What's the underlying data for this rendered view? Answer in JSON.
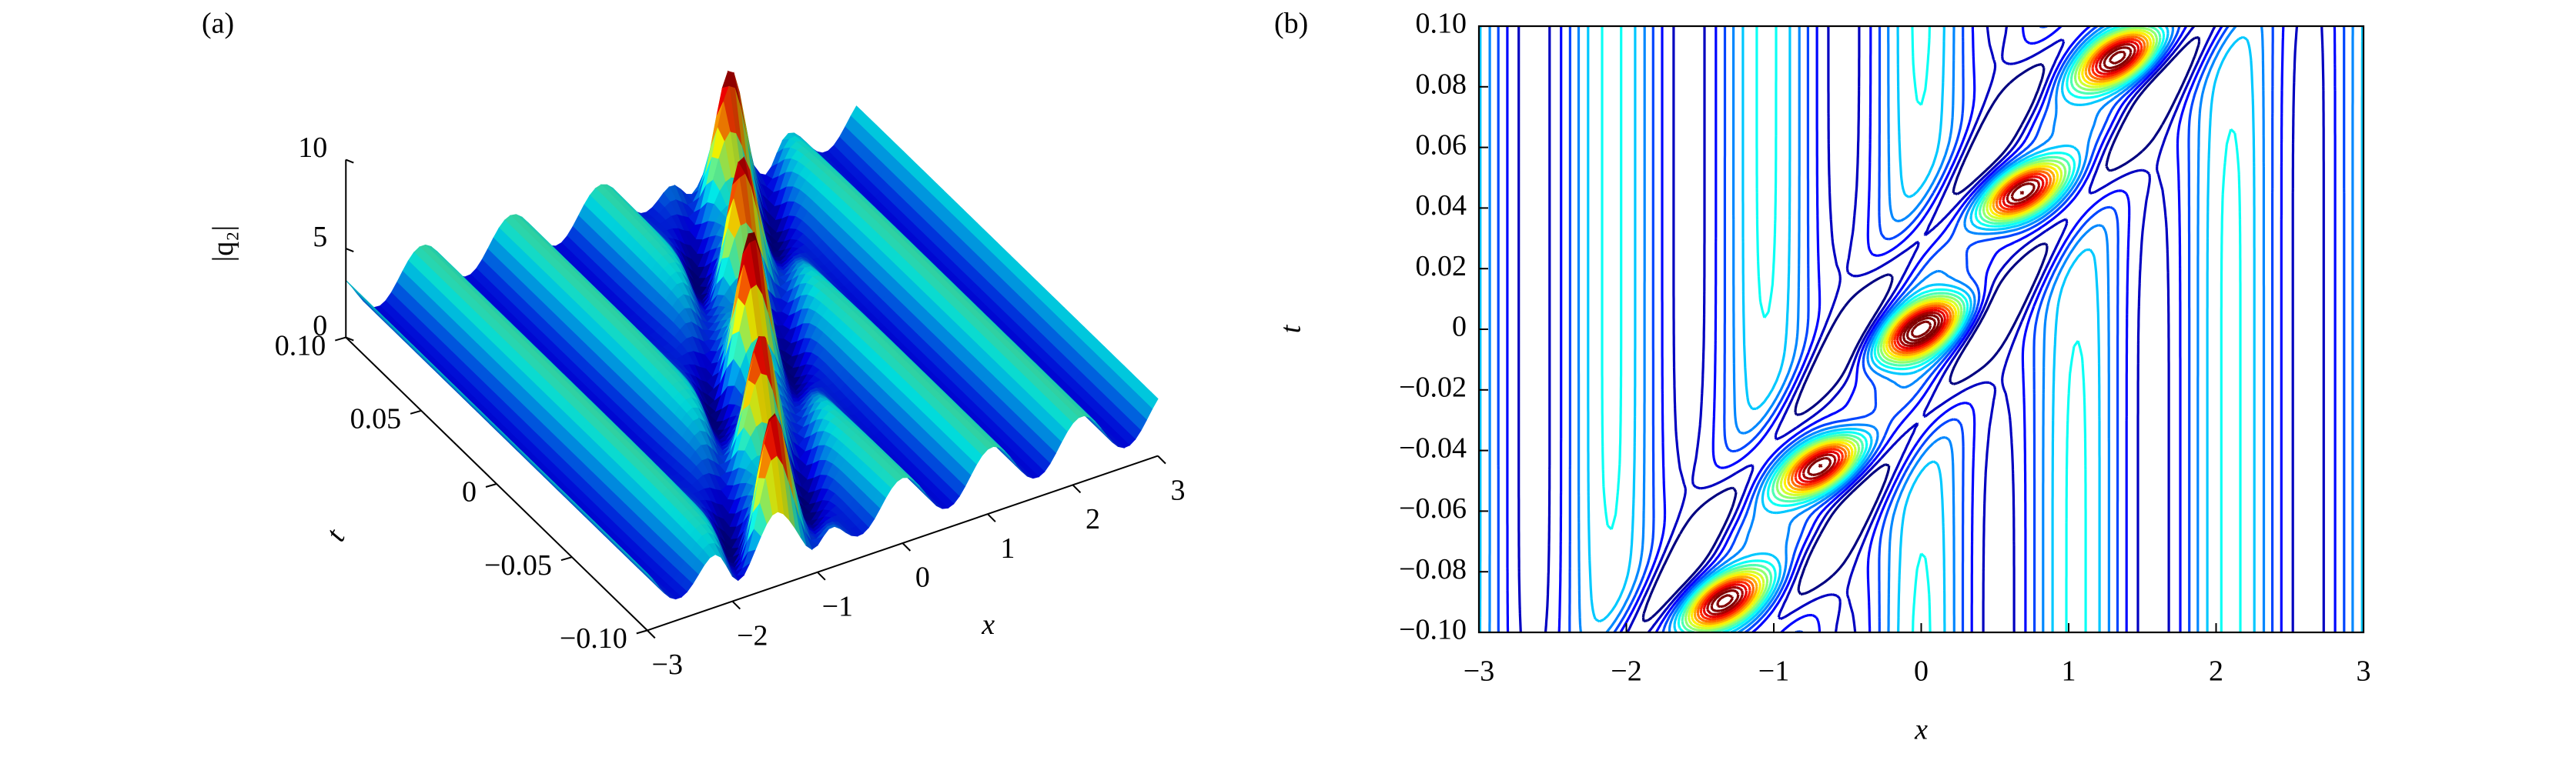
{
  "chart_data": [
    {
      "type": "surface",
      "panel_label": "(a)",
      "xlabel": "x",
      "ylabel": "t",
      "zlabel": "|q₂|",
      "xlim": [
        -3,
        3
      ],
      "ylim": [
        -0.1,
        0.1
      ],
      "zlim": [
        0,
        10
      ],
      "xticks": [
        {
          "value": -3,
          "label": "−3"
        },
        {
          "value": -2,
          "label": "−2"
        },
        {
          "value": -1,
          "label": "−1"
        },
        0,
        1,
        2,
        3
      ],
      "yticks": [
        {
          "value": -0.1,
          "label": "−0.10"
        },
        {
          "value": -0.05,
          "label": "−0.05"
        },
        0,
        {
          "value": 0.05,
          "label": "0.05"
        },
        {
          "value": 0.1,
          "label": "0.10"
        }
      ],
      "zticks": [
        0,
        5,
        10
      ],
      "colormap": "jet"
    },
    {
      "type": "contour",
      "panel_label": "(b)",
      "xlabel": "x",
      "ylabel": "t",
      "xlim": [
        -3,
        3
      ],
      "ylim": [
        -0.1,
        0.1
      ],
      "xticks": [
        {
          "value": -3,
          "label": "−3"
        },
        {
          "value": -2,
          "label": "−2"
        },
        {
          "value": -1,
          "label": "−1"
        },
        0,
        1,
        2,
        3
      ],
      "yticks": [
        {
          "value": -0.1,
          "label": "−0.10"
        },
        {
          "value": -0.08,
          "label": "−0.08"
        },
        {
          "value": -0.06,
          "label": "−0.06"
        },
        {
          "value": -0.04,
          "label": "−0.04"
        },
        {
          "value": -0.02,
          "label": "−0.02"
        },
        0,
        {
          "value": 0.02,
          "label": "0.02"
        },
        {
          "value": 0.04,
          "label": "0.04"
        },
        {
          "value": 0.06,
          "label": "0.06"
        },
        {
          "value": 0.08,
          "label": "0.08"
        },
        {
          "value": 0.1,
          "label": "0.10"
        }
      ],
      "colormap": "jet"
    }
  ]
}
